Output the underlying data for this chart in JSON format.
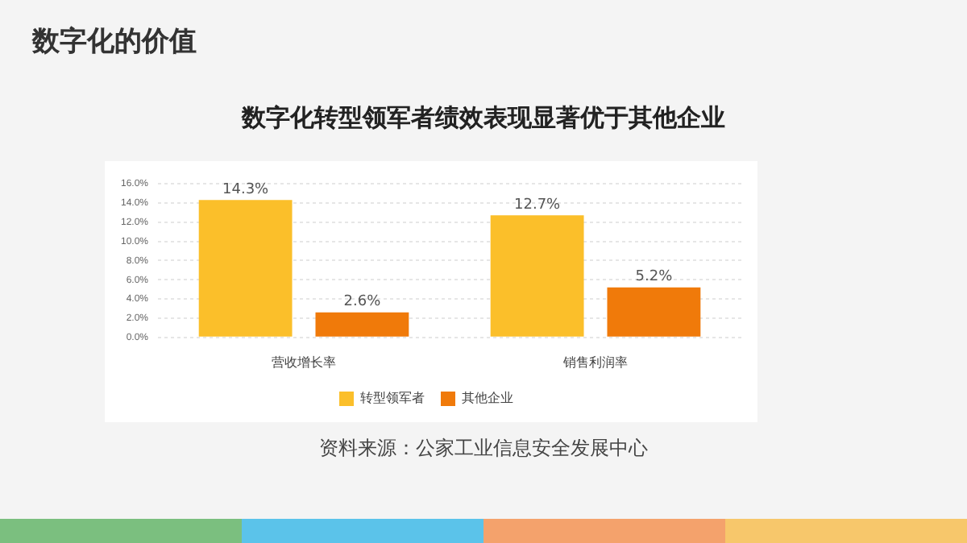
{
  "chart_data": {
    "type": "bar",
    "title": "数字化的价值",
    "subtitle": "数字化转型领军者绩效表现显著优于其他企业",
    "categories": [
      "营收增长率",
      "销售利润率"
    ],
    "series": [
      {
        "name": "转型领军者",
        "color": "#fbbf2a",
        "values": [
          14.3,
          12.7
        ],
        "value_labels": [
          "14.3%",
          "12.7%"
        ]
      },
      {
        "name": "其他企业",
        "color": "#f07a0a",
        "values": [
          2.6,
          5.2
        ],
        "value_labels": [
          "2.6%",
          "5.2%"
        ]
      }
    ],
    "ylim": [
      0,
      16
    ],
    "yticks": [
      {
        "value": 0,
        "label": "0.0%"
      },
      {
        "value": 2,
        "label": "2.0%"
      },
      {
        "value": 4,
        "label": "4.0%"
      },
      {
        "value": 6,
        "label": "6.0%"
      },
      {
        "value": 8,
        "label": "8.0%"
      },
      {
        "value": 10,
        "label": "10.0%"
      },
      {
        "value": 12,
        "label": "12.0%"
      },
      {
        "value": 14,
        "label": "14.0%"
      },
      {
        "value": 16,
        "label": "16.0%"
      }
    ],
    "grid": "y",
    "legend": "bottom",
    "annotations": [
      "资料来源：公家工业信息安全发展中心"
    ]
  }
}
